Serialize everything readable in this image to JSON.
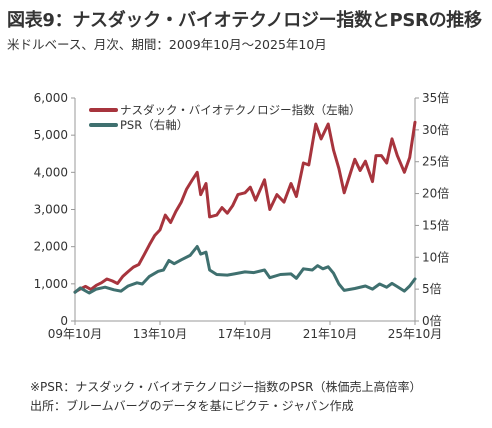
{
  "header": {
    "title": "図表9：ナスダック・バイオテクノロジー指数とPSRの推移",
    "subtitle": "米ドルベース、月次、期間：2009年10月～2025年10月"
  },
  "footnotes": {
    "note": "※PSR：ナスダック・バイオテクノロジー指数のPSR（株価売上高倍率）",
    "source": "出所：ブルームバーグのデータを基にピクテ・ジャパン作成"
  },
  "colors": {
    "index_series": "#a7343d",
    "psr_series": "#3f706f",
    "axis": "#999999",
    "text": "#333333"
  },
  "chart_data": {
    "type": "line",
    "legend_position": "top-left",
    "grid": false,
    "x_ticks": [
      "09年10月",
      "13年10月",
      "17年10月",
      "21年10月",
      "25年10月"
    ],
    "y_left": {
      "range": [
        0,
        6000
      ],
      "ticks": [
        "0",
        "1,000",
        "2,000",
        "3,000",
        "4,000",
        "5,000",
        "6,000"
      ]
    },
    "y_right": {
      "range": [
        0,
        35
      ],
      "ticks": [
        "0倍",
        "5倍",
        "10倍",
        "15倍",
        "20倍",
        "25倍",
        "30倍",
        "35倍"
      ]
    },
    "series": [
      {
        "name": "ナスダック・バイオテクノロジー指数（左軸）",
        "axis": "left",
        "points": [
          [
            "2009-10",
            780
          ],
          [
            "2010-01",
            860
          ],
          [
            "2010-04",
            930
          ],
          [
            "2010-07",
            850
          ],
          [
            "2010-10",
            960
          ],
          [
            "2011-01",
            1030
          ],
          [
            "2011-04",
            1130
          ],
          [
            "2011-07",
            1080
          ],
          [
            "2011-10",
            1010
          ],
          [
            "2012-01",
            1200
          ],
          [
            "2012-04",
            1330
          ],
          [
            "2012-07",
            1450
          ],
          [
            "2012-10",
            1520
          ],
          [
            "2013-01",
            1780
          ],
          [
            "2013-04",
            2050
          ],
          [
            "2013-07",
            2300
          ],
          [
            "2013-10",
            2450
          ],
          [
            "2014-01",
            2850
          ],
          [
            "2014-04",
            2650
          ],
          [
            "2014-07",
            2950
          ],
          [
            "2014-10",
            3200
          ],
          [
            "2015-01",
            3550
          ],
          [
            "2015-04",
            3780
          ],
          [
            "2015-07",
            4000
          ],
          [
            "2015-09",
            3400
          ],
          [
            "2015-12",
            3700
          ],
          [
            "2016-02",
            2800
          ],
          [
            "2016-06",
            2850
          ],
          [
            "2016-09",
            3050
          ],
          [
            "2016-12",
            2900
          ],
          [
            "2017-03",
            3100
          ],
          [
            "2017-06",
            3400
          ],
          [
            "2017-10",
            3450
          ],
          [
            "2018-01",
            3600
          ],
          [
            "2018-04",
            3250
          ],
          [
            "2018-09",
            3800
          ],
          [
            "2018-12",
            3000
          ],
          [
            "2019-04",
            3400
          ],
          [
            "2019-08",
            3200
          ],
          [
            "2019-12",
            3700
          ],
          [
            "2020-03",
            3350
          ],
          [
            "2020-07",
            4250
          ],
          [
            "2020-10",
            4200
          ],
          [
            "2021-02",
            5300
          ],
          [
            "2021-05",
            4900
          ],
          [
            "2021-09",
            5300
          ],
          [
            "2021-12",
            4600
          ],
          [
            "2022-03",
            4100
          ],
          [
            "2022-06",
            3450
          ],
          [
            "2022-09",
            3900
          ],
          [
            "2022-12",
            4350
          ],
          [
            "2023-03",
            4050
          ],
          [
            "2023-06",
            4300
          ],
          [
            "2023-10",
            3750
          ],
          [
            "2023-12",
            4450
          ],
          [
            "2024-03",
            4450
          ],
          [
            "2024-06",
            4250
          ],
          [
            "2024-09",
            4900
          ],
          [
            "2024-12",
            4450
          ],
          [
            "2025-04",
            4000
          ],
          [
            "2025-07",
            4400
          ],
          [
            "2025-10",
            5350
          ]
        ]
      },
      {
        "name": "PSR（右軸）",
        "axis": "right",
        "points": [
          [
            "2009-10",
            4.5
          ],
          [
            "2010-01",
            5.2
          ],
          [
            "2010-06",
            4.4
          ],
          [
            "2010-10",
            5.0
          ],
          [
            "2011-03",
            5.3
          ],
          [
            "2011-08",
            4.9
          ],
          [
            "2011-12",
            4.7
          ],
          [
            "2012-04",
            5.5
          ],
          [
            "2012-09",
            6.0
          ],
          [
            "2012-12",
            5.8
          ],
          [
            "2013-04",
            7.0
          ],
          [
            "2013-09",
            7.8
          ],
          [
            "2013-12",
            8.0
          ],
          [
            "2014-03",
            9.5
          ],
          [
            "2014-06",
            9.0
          ],
          [
            "2014-10",
            9.6
          ],
          [
            "2015-03",
            10.3
          ],
          [
            "2015-07",
            11.7
          ],
          [
            "2015-09",
            10.5
          ],
          [
            "2015-12",
            10.8
          ],
          [
            "2016-02",
            8.0
          ],
          [
            "2016-06",
            7.3
          ],
          [
            "2016-12",
            7.2
          ],
          [
            "2017-04",
            7.4
          ],
          [
            "2017-10",
            7.7
          ],
          [
            "2018-03",
            7.6
          ],
          [
            "2018-09",
            8.0
          ],
          [
            "2018-12",
            6.8
          ],
          [
            "2019-06",
            7.3
          ],
          [
            "2019-12",
            7.4
          ],
          [
            "2020-03",
            6.7
          ],
          [
            "2020-07",
            8.2
          ],
          [
            "2020-12",
            8.0
          ],
          [
            "2021-03",
            8.7
          ],
          [
            "2021-06",
            8.2
          ],
          [
            "2021-09",
            8.5
          ],
          [
            "2021-12",
            7.5
          ],
          [
            "2022-03",
            5.8
          ],
          [
            "2022-06",
            4.8
          ],
          [
            "2022-12",
            5.1
          ],
          [
            "2023-06",
            5.5
          ],
          [
            "2023-10",
            5.0
          ],
          [
            "2024-02",
            5.8
          ],
          [
            "2024-06",
            5.3
          ],
          [
            "2024-09",
            5.9
          ],
          [
            "2024-12",
            5.4
          ],
          [
            "2025-04",
            4.7
          ],
          [
            "2025-07",
            5.5
          ],
          [
            "2025-10",
            6.6
          ]
        ]
      }
    ]
  }
}
